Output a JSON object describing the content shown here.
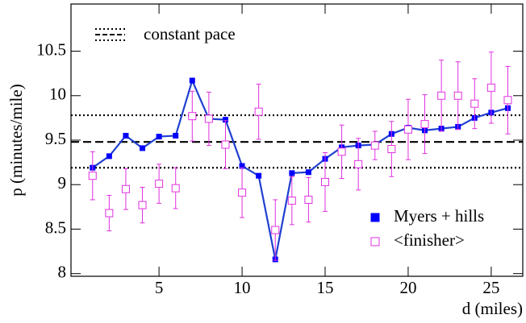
{
  "chart_data": {
    "type": "line",
    "x_label": "d (miles)",
    "y_label": "p (minutes/mile)",
    "xlim": [
      -0.3,
      26.9
    ],
    "ylim": [
      7.97,
      11.03
    ],
    "xticks": [
      5,
      10,
      15,
      20,
      25
    ],
    "yticks": [
      8,
      8.5,
      9,
      9.5,
      10,
      10.5
    ],
    "x": [
      1,
      2,
      3,
      4,
      5,
      6,
      7,
      8,
      9,
      10,
      11,
      12,
      13,
      14,
      15,
      16,
      17,
      18,
      19,
      20,
      21,
      22,
      23,
      24,
      25,
      26
    ],
    "series": [
      {
        "name": "Myers + hills",
        "color": "#0000ff",
        "line_color": "#2040d0",
        "marker": "filled-square",
        "values": [
          9.19,
          9.32,
          9.55,
          9.41,
          9.54,
          9.55,
          10.17,
          9.74,
          9.73,
          9.21,
          9.1,
          8.16,
          9.13,
          9.14,
          9.29,
          9.42,
          9.44,
          9.45,
          9.57,
          9.64,
          9.61,
          9.63,
          9.65,
          9.75,
          9.81,
          9.86
        ]
      },
      {
        "name": "<finisher>",
        "color": "#e030e0",
        "marker": "open-square",
        "values": [
          9.1,
          8.68,
          8.95,
          8.77,
          9.01,
          8.96,
          9.77,
          9.74,
          9.45,
          8.91,
          9.82,
          8.49,
          8.82,
          8.83,
          9.03,
          9.37,
          9.23,
          9.44,
          9.4,
          9.62,
          9.68,
          10.0,
          10.0,
          9.91,
          10.09,
          9.95
        ],
        "errors": [
          0.27,
          0.2,
          0.23,
          0.2,
          0.22,
          0.23,
          0.28,
          0.3,
          0.27,
          0.28,
          0.31,
          0.34,
          0.27,
          0.25,
          0.33,
          0.3,
          0.29,
          0.16,
          0.31,
          0.34,
          0.33,
          0.4,
          0.38,
          0.28,
          0.4,
          0.38
        ]
      }
    ],
    "reference": {
      "name": "constant pace",
      "values": [
        9.19,
        9.48,
        9.78
      ],
      "styles": [
        "dotted",
        "dashed",
        "dotted"
      ]
    }
  }
}
